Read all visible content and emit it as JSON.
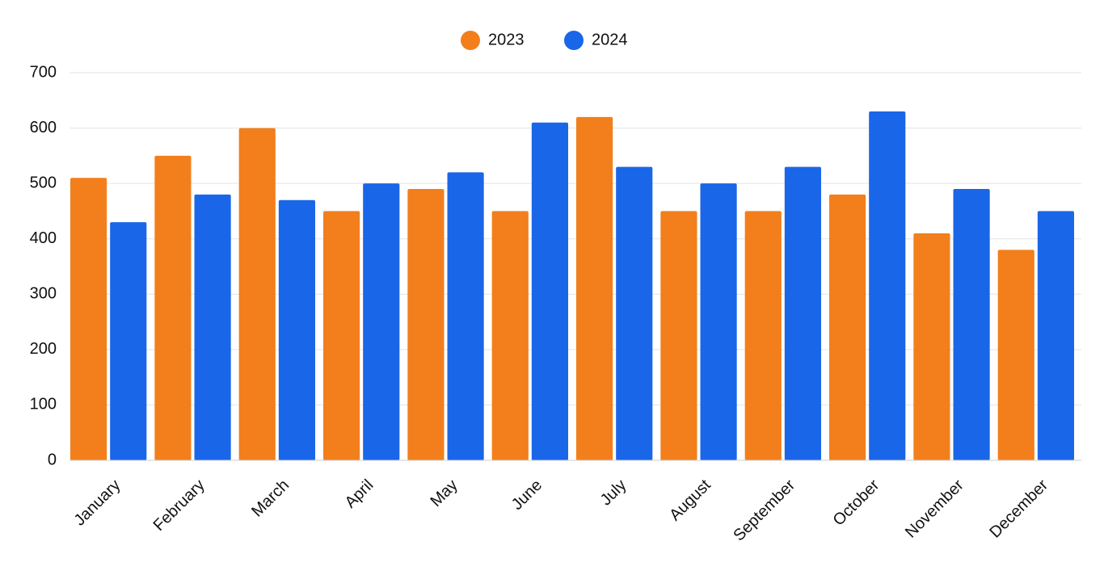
{
  "chart_data": {
    "type": "bar",
    "categories": [
      "January",
      "February",
      "March",
      "April",
      "May",
      "June",
      "July",
      "August",
      "September",
      "October",
      "November",
      "December"
    ],
    "series": [
      {
        "name": "2023",
        "color": "#f27f1c",
        "values": [
          510,
          550,
          600,
          450,
          490,
          450,
          620,
          450,
          450,
          480,
          410,
          380
        ]
      },
      {
        "name": "2024",
        "color": "#1a66e8",
        "values": [
          430,
          480,
          470,
          500,
          520,
          610,
          530,
          500,
          530,
          630,
          490,
          450
        ]
      }
    ],
    "ylim": [
      0,
      700
    ],
    "yticks": [
      0,
      100,
      200,
      300,
      400,
      500,
      600,
      700
    ],
    "grid": true,
    "legend": "top"
  }
}
